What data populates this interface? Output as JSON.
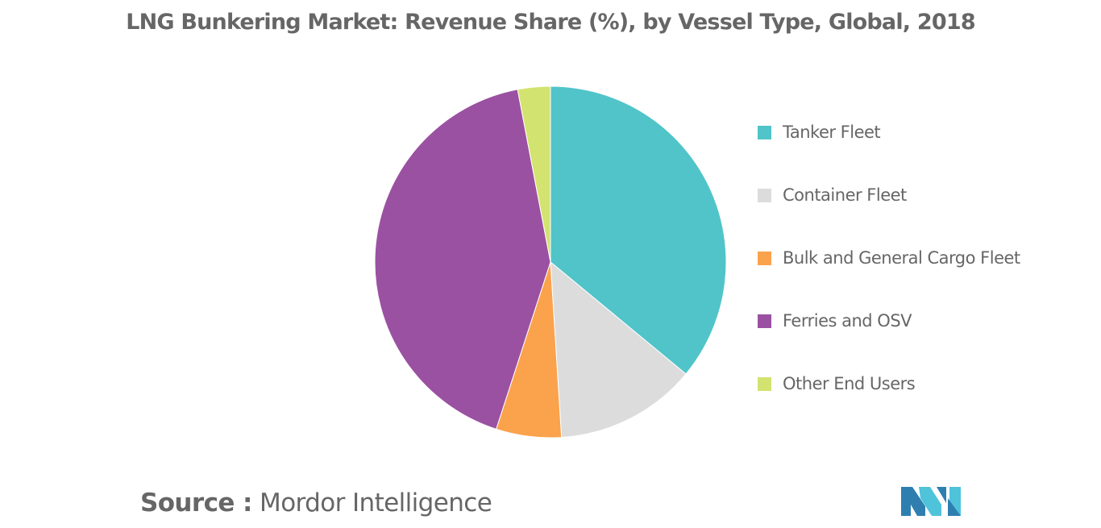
{
  "chart_data": {
    "type": "pie",
    "title": "LNG Bunkering Market: Revenue Share (%), by Vessel Type, Global, 2018",
    "categories": [
      "Tanker Fleet",
      "Container Fleet",
      "Bulk and General Cargo Fleet",
      "Ferries and OSV",
      "Other End Users"
    ],
    "values": [
      36,
      13,
      6,
      42,
      3
    ],
    "colors": [
      "#50C4C9",
      "#DCDCDC",
      "#FBA24C",
      "#9B51A1",
      "#D3E36F"
    ],
    "legend_position": "right"
  },
  "source": {
    "label": "Source :",
    "text": "Mordor Intelligence"
  },
  "logo": {
    "name": "mordor-intelligence-logo",
    "colors": [
      "#2E7FB0",
      "#4FC3D9"
    ]
  }
}
